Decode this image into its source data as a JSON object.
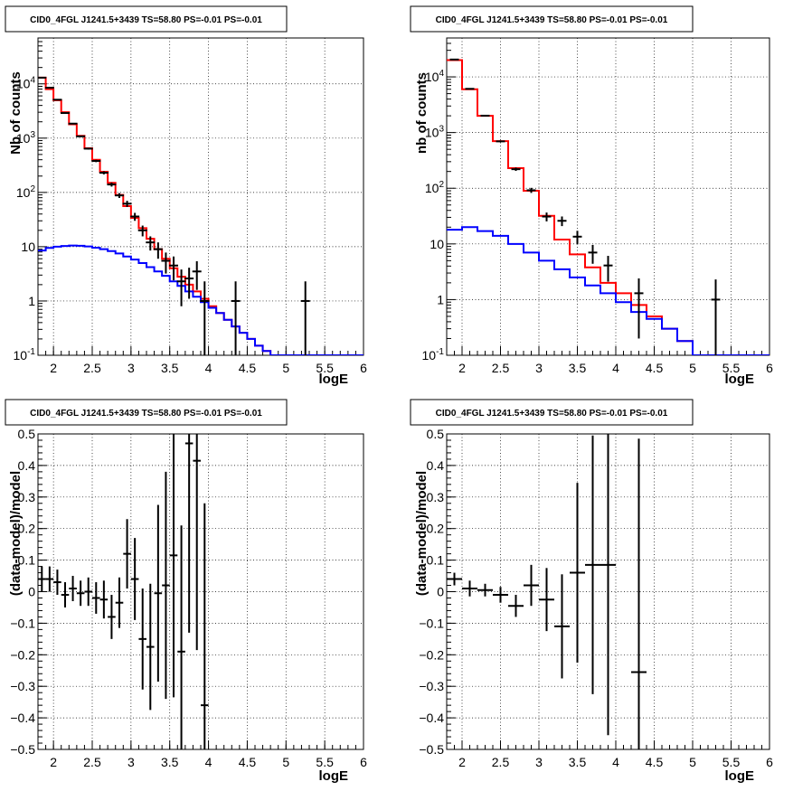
{
  "chart_data": [
    {
      "type": "line",
      "title": "CID0_4FGL J1241.5+3439 TS=58.80 PS=-0.01 PS=-0.01",
      "xlabel": "logE",
      "ylabel": "Nb of counts",
      "xlim": [
        1.8,
        6.0
      ],
      "ylim": [
        0.1,
        70000
      ],
      "log_y": true,
      "grid": true,
      "x_ticks": [
        2,
        2.5,
        3,
        3.5,
        4,
        4.5,
        5,
        5.5,
        6
      ],
      "y_ticks": [
        0.1,
        1,
        10,
        100,
        1000,
        10000
      ],
      "y_tick_labels": [
        "10^-1",
        "1",
        "10",
        "10^2",
        "10^3",
        "10^4"
      ],
      "bin_edges": [
        1.8,
        1.9,
        2.0,
        2.1,
        2.2,
        2.3,
        2.4,
        2.5,
        2.6,
        2.7,
        2.8,
        2.9,
        3.0,
        3.1,
        3.2,
        3.3,
        3.4,
        3.5,
        3.6,
        3.7,
        3.8,
        3.9,
        4.0,
        4.1,
        4.2,
        4.3,
        4.4,
        4.5,
        4.6,
        4.7,
        4.8,
        4.9,
        5.0,
        5.1,
        5.2,
        5.3,
        5.4,
        5.5,
        5.6,
        5.7,
        5.8,
        5.9,
        6.0
      ],
      "series": [
        {
          "kind": "step",
          "color": "#ff0000",
          "values": [
            13000,
            8000,
            5000,
            3000,
            1800,
            1100,
            650,
            400,
            240,
            150,
            90,
            56,
            34,
            22,
            14,
            9,
            6,
            4,
            2.8,
            2.0,
            1.5,
            1.1,
            0.8,
            0.6,
            0.45,
            0.34,
            0.26,
            0.2,
            0.15,
            0.12,
            0.1,
            0.1,
            0.1,
            0.1,
            0.1,
            0.1,
            0.1,
            0.1,
            0.1,
            0.1,
            0.1,
            0.1
          ]
        },
        {
          "kind": "step",
          "color": "#0000ff",
          "values": [
            8.5,
            9.5,
            10,
            10.3,
            10.5,
            10.4,
            10.1,
            9.6,
            9,
            8.3,
            7.5,
            6.6,
            5.8,
            5,
            4.2,
            3.5,
            2.9,
            2.3,
            1.9,
            1.5,
            1.2,
            0.95,
            0.75,
            0.6,
            0.45,
            0.34,
            0.26,
            0.2,
            0.15,
            0.12,
            0.1,
            0.1,
            0.1,
            0.1,
            0.1,
            0.1,
            0.1,
            0.1,
            0.1,
            0.1,
            0.1,
            0.1
          ]
        },
        {
          "kind": "points",
          "color": "#000000",
          "x": [
            1.85,
            1.95,
            2.05,
            2.15,
            2.25,
            2.35,
            2.45,
            2.55,
            2.65,
            2.75,
            2.85,
            2.95,
            3.05,
            3.15,
            3.25,
            3.35,
            3.45,
            3.55,
            3.65,
            3.75,
            3.85,
            3.95,
            4.35,
            5.25
          ],
          "values": [
            13000,
            8500,
            5100,
            2900,
            1850,
            1080,
            640,
            380,
            230,
            140,
            88,
            62,
            36,
            20,
            12,
            9,
            5.5,
            4.5,
            2.3,
            2.6,
            3.5,
            1,
            1,
            1
          ],
          "yerr_lo": [
            120,
            90,
            70,
            55,
            45,
            33,
            25,
            19,
            15,
            12,
            9,
            8,
            6,
            4.5,
            3.5,
            3,
            2.3,
            2.1,
            1.5,
            1.5,
            1.9,
            0.999,
            0.999,
            0.999
          ],
          "yerr_hi": [
            120,
            90,
            70,
            55,
            45,
            33,
            25,
            19,
            15,
            12,
            9,
            8,
            6,
            4.5,
            3.5,
            3,
            2.3,
            2.1,
            1.5,
            1.5,
            1.9,
            1.3,
            1.3,
            1.3
          ]
        }
      ]
    },
    {
      "type": "line",
      "title": "CID0_4FGL J1241.5+3439 TS=58.80 PS=-0.01 PS=-0.01",
      "xlabel": "logE",
      "ylabel": "nb of counts",
      "xlim": [
        1.8,
        6.0
      ],
      "ylim": [
        0.1,
        50000
      ],
      "log_y": true,
      "grid": true,
      "x_ticks": [
        2,
        2.5,
        3,
        3.5,
        4,
        4.5,
        5,
        5.5,
        6
      ],
      "y_ticks": [
        0.1,
        1,
        10,
        100,
        1000,
        10000
      ],
      "y_tick_labels": [
        "10^-1",
        "1",
        "10",
        "10^2",
        "10^3",
        "10^4"
      ],
      "bin_edges": [
        1.8,
        2.0,
        2.2,
        2.4,
        2.6,
        2.8,
        3.0,
        3.2,
        3.4,
        3.6,
        3.8,
        4.0,
        4.2,
        4.4,
        4.6,
        4.8,
        5.0,
        5.2,
        5.4,
        5.6,
        5.8,
        6.0
      ],
      "series": [
        {
          "kind": "step",
          "color": "#ff0000",
          "values": [
            20000,
            6000,
            2000,
            700,
            230,
            90,
            32,
            12,
            6.5,
            3.8,
            2,
            1.3,
            0.8,
            0.5,
            0.3,
            0.18,
            0.1,
            0.1,
            0.1,
            0.1,
            0.1
          ]
        },
        {
          "kind": "step",
          "color": "#0000ff",
          "values": [
            18,
            20,
            17,
            14,
            10,
            7,
            5,
            3.5,
            2.5,
            1.8,
            1.3,
            0.9,
            0.6,
            0.45,
            0.3,
            0.18,
            0.1,
            0.1,
            0.1,
            0.1,
            0.1
          ]
        },
        {
          "kind": "points",
          "color": "#000000",
          "x": [
            1.9,
            2.1,
            2.3,
            2.5,
            2.7,
            2.9,
            3.1,
            3.3,
            3.5,
            3.7,
            3.9,
            4.3,
            5.3
          ],
          "values": [
            20500,
            6100,
            2010,
            695,
            220,
            92,
            31,
            26,
            13.5,
            7,
            4.1,
            1.3,
            1
          ],
          "yerr_lo": [
            143,
            78,
            45,
            26,
            15,
            9.6,
            5.6,
            5.1,
            3.7,
            2.6,
            2,
            1.1,
            0.999
          ],
          "yerr_hi": [
            143,
            78,
            45,
            26,
            15,
            9.6,
            5.6,
            5.1,
            3.7,
            2.6,
            2,
            1.1,
            1.3
          ]
        }
      ]
    },
    {
      "type": "scatter",
      "title": "CID0_4FGL J1241.5+3439 TS=58.80 PS=-0.01 PS=-0.01",
      "xlabel": "logE",
      "ylabel": "(data-model)/model",
      "xlim": [
        1.8,
        6.0
      ],
      "ylim": [
        -0.5,
        0.5
      ],
      "grid": true,
      "x_ticks": [
        2,
        2.5,
        3,
        3.5,
        4,
        4.5,
        5,
        5.5,
        6
      ],
      "y_ticks": [
        -0.5,
        -0.4,
        -0.3,
        -0.2,
        -0.1,
        0,
        0.1,
        0.2,
        0.3,
        0.4,
        0.5
      ],
      "y_tick_labels": [
        "−0.5",
        "−0.4",
        "−0.3",
        "−0.2",
        "−0.1",
        "0",
        "0.1",
        "0.2",
        "0.3",
        "0.4",
        "0.5"
      ],
      "series": [
        {
          "kind": "points",
          "color": "#000000",
          "xerr": 0.05,
          "x": [
            1.85,
            1.95,
            2.05,
            2.15,
            2.25,
            2.35,
            2.45,
            2.55,
            2.65,
            2.75,
            2.85,
            2.95,
            3.05,
            3.15,
            3.25,
            3.35,
            3.45,
            3.55,
            3.65,
            3.75,
            3.85,
            3.95
          ],
          "values": [
            0.04,
            0.04,
            0.03,
            -0.01,
            0.01,
            -0.005,
            0,
            -0.02,
            -0.025,
            -0.08,
            -0.035,
            0.12,
            0.04,
            -0.15,
            -0.175,
            -0.005,
            0.02,
            0.115,
            -0.19,
            0.47,
            0.415,
            -0.36
          ],
          "yerr": [
            0.04,
            0.04,
            0.04,
            0.04,
            0.04,
            0.04,
            0.045,
            0.05,
            0.06,
            0.07,
            0.08,
            0.11,
            0.13,
            0.16,
            0.2,
            0.28,
            0.36,
            0.45,
            0.4,
            0.6,
            0.6,
            0.64
          ]
        }
      ]
    },
    {
      "type": "scatter",
      "title": "CID0_4FGL J1241.5+3439 TS=58.80 PS=-0.01 PS=-0.01",
      "xlabel": "logE",
      "ylabel": "(data-model)/model",
      "xlim": [
        1.8,
        6.0
      ],
      "ylim": [
        -0.5,
        0.5
      ],
      "grid": true,
      "x_ticks": [
        2,
        2.5,
        3,
        3.5,
        4,
        4.5,
        5,
        5.5,
        6
      ],
      "y_ticks": [
        -0.5,
        -0.4,
        -0.3,
        -0.2,
        -0.1,
        0,
        0.1,
        0.2,
        0.3,
        0.4,
        0.5
      ],
      "y_tick_labels": [
        "−0.5",
        "−0.4",
        "−0.3",
        "−0.2",
        "−0.1",
        "0",
        "0.1",
        "0.2",
        "0.3",
        "0.4",
        "0.5"
      ],
      "series": [
        {
          "kind": "points",
          "color": "#000000",
          "xerr": 0.1,
          "x": [
            1.9,
            2.1,
            2.3,
            2.5,
            2.7,
            2.9,
            3.1,
            3.3,
            3.5,
            3.7,
            3.9,
            4.3
          ],
          "values": [
            0.04,
            0.01,
            0.005,
            -0.01,
            -0.045,
            0.02,
            -0.025,
            -0.11,
            0.06,
            0.085,
            0.085,
            -0.255
          ],
          "yerr": [
            0.02,
            0.025,
            0.02,
            0.025,
            0.035,
            0.065,
            0.1,
            0.165,
            0.285,
            0.41,
            0.54,
            0.74
          ]
        }
      ]
    }
  ]
}
